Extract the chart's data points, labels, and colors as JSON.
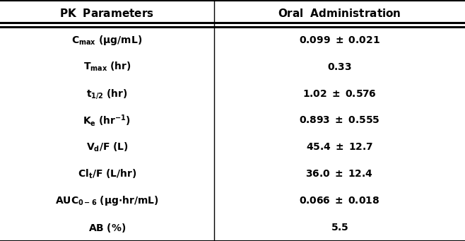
{
  "headers_left": "PK  Parameters",
  "headers_right": "Oral  Administration",
  "row_labels_left": [
    "$\\mathbf{C_{max}}$  ($\\mathbf{\\mu g/mL}$)",
    "$\\mathbf{T_{max}}$  $\\mathbf{(hr)}$",
    "$\\mathbf{t_{1/2}}$  $\\mathbf{(hr)}$",
    "$\\mathbf{K_e}$  $\\mathbf{(hr^{-1})}$",
    "$\\mathbf{V_d/F}$  $\\mathbf{(L)}$",
    "$\\mathbf{Cl_t/F}$  $\\mathbf{(L/hr)}$",
    "$\\mathbf{AUC_{0-6}}$  $\\mathbf{(\\mu g{\\cdot}hr/mL)}$",
    "$\\mathbf{AB}$  $\\mathbf{(\\%)}$"
  ],
  "row_labels_right": [
    "0.099 ± 0.021",
    "0.33",
    "1.02 ± 0.576",
    "0.893 ± 0.555",
    "45.4 ± 12.7",
    "36.0 ± 12.4",
    "0.066 ± 0.018",
    "5.5"
  ],
  "col_split": 0.46,
  "background_color": "#ffffff",
  "header_fontsize": 11,
  "row_fontsize": 10,
  "line_color": "#000000",
  "text_color": "#000000",
  "lw_outer": 2.2,
  "lw_inner": 1.0,
  "lw_vert": 1.0
}
